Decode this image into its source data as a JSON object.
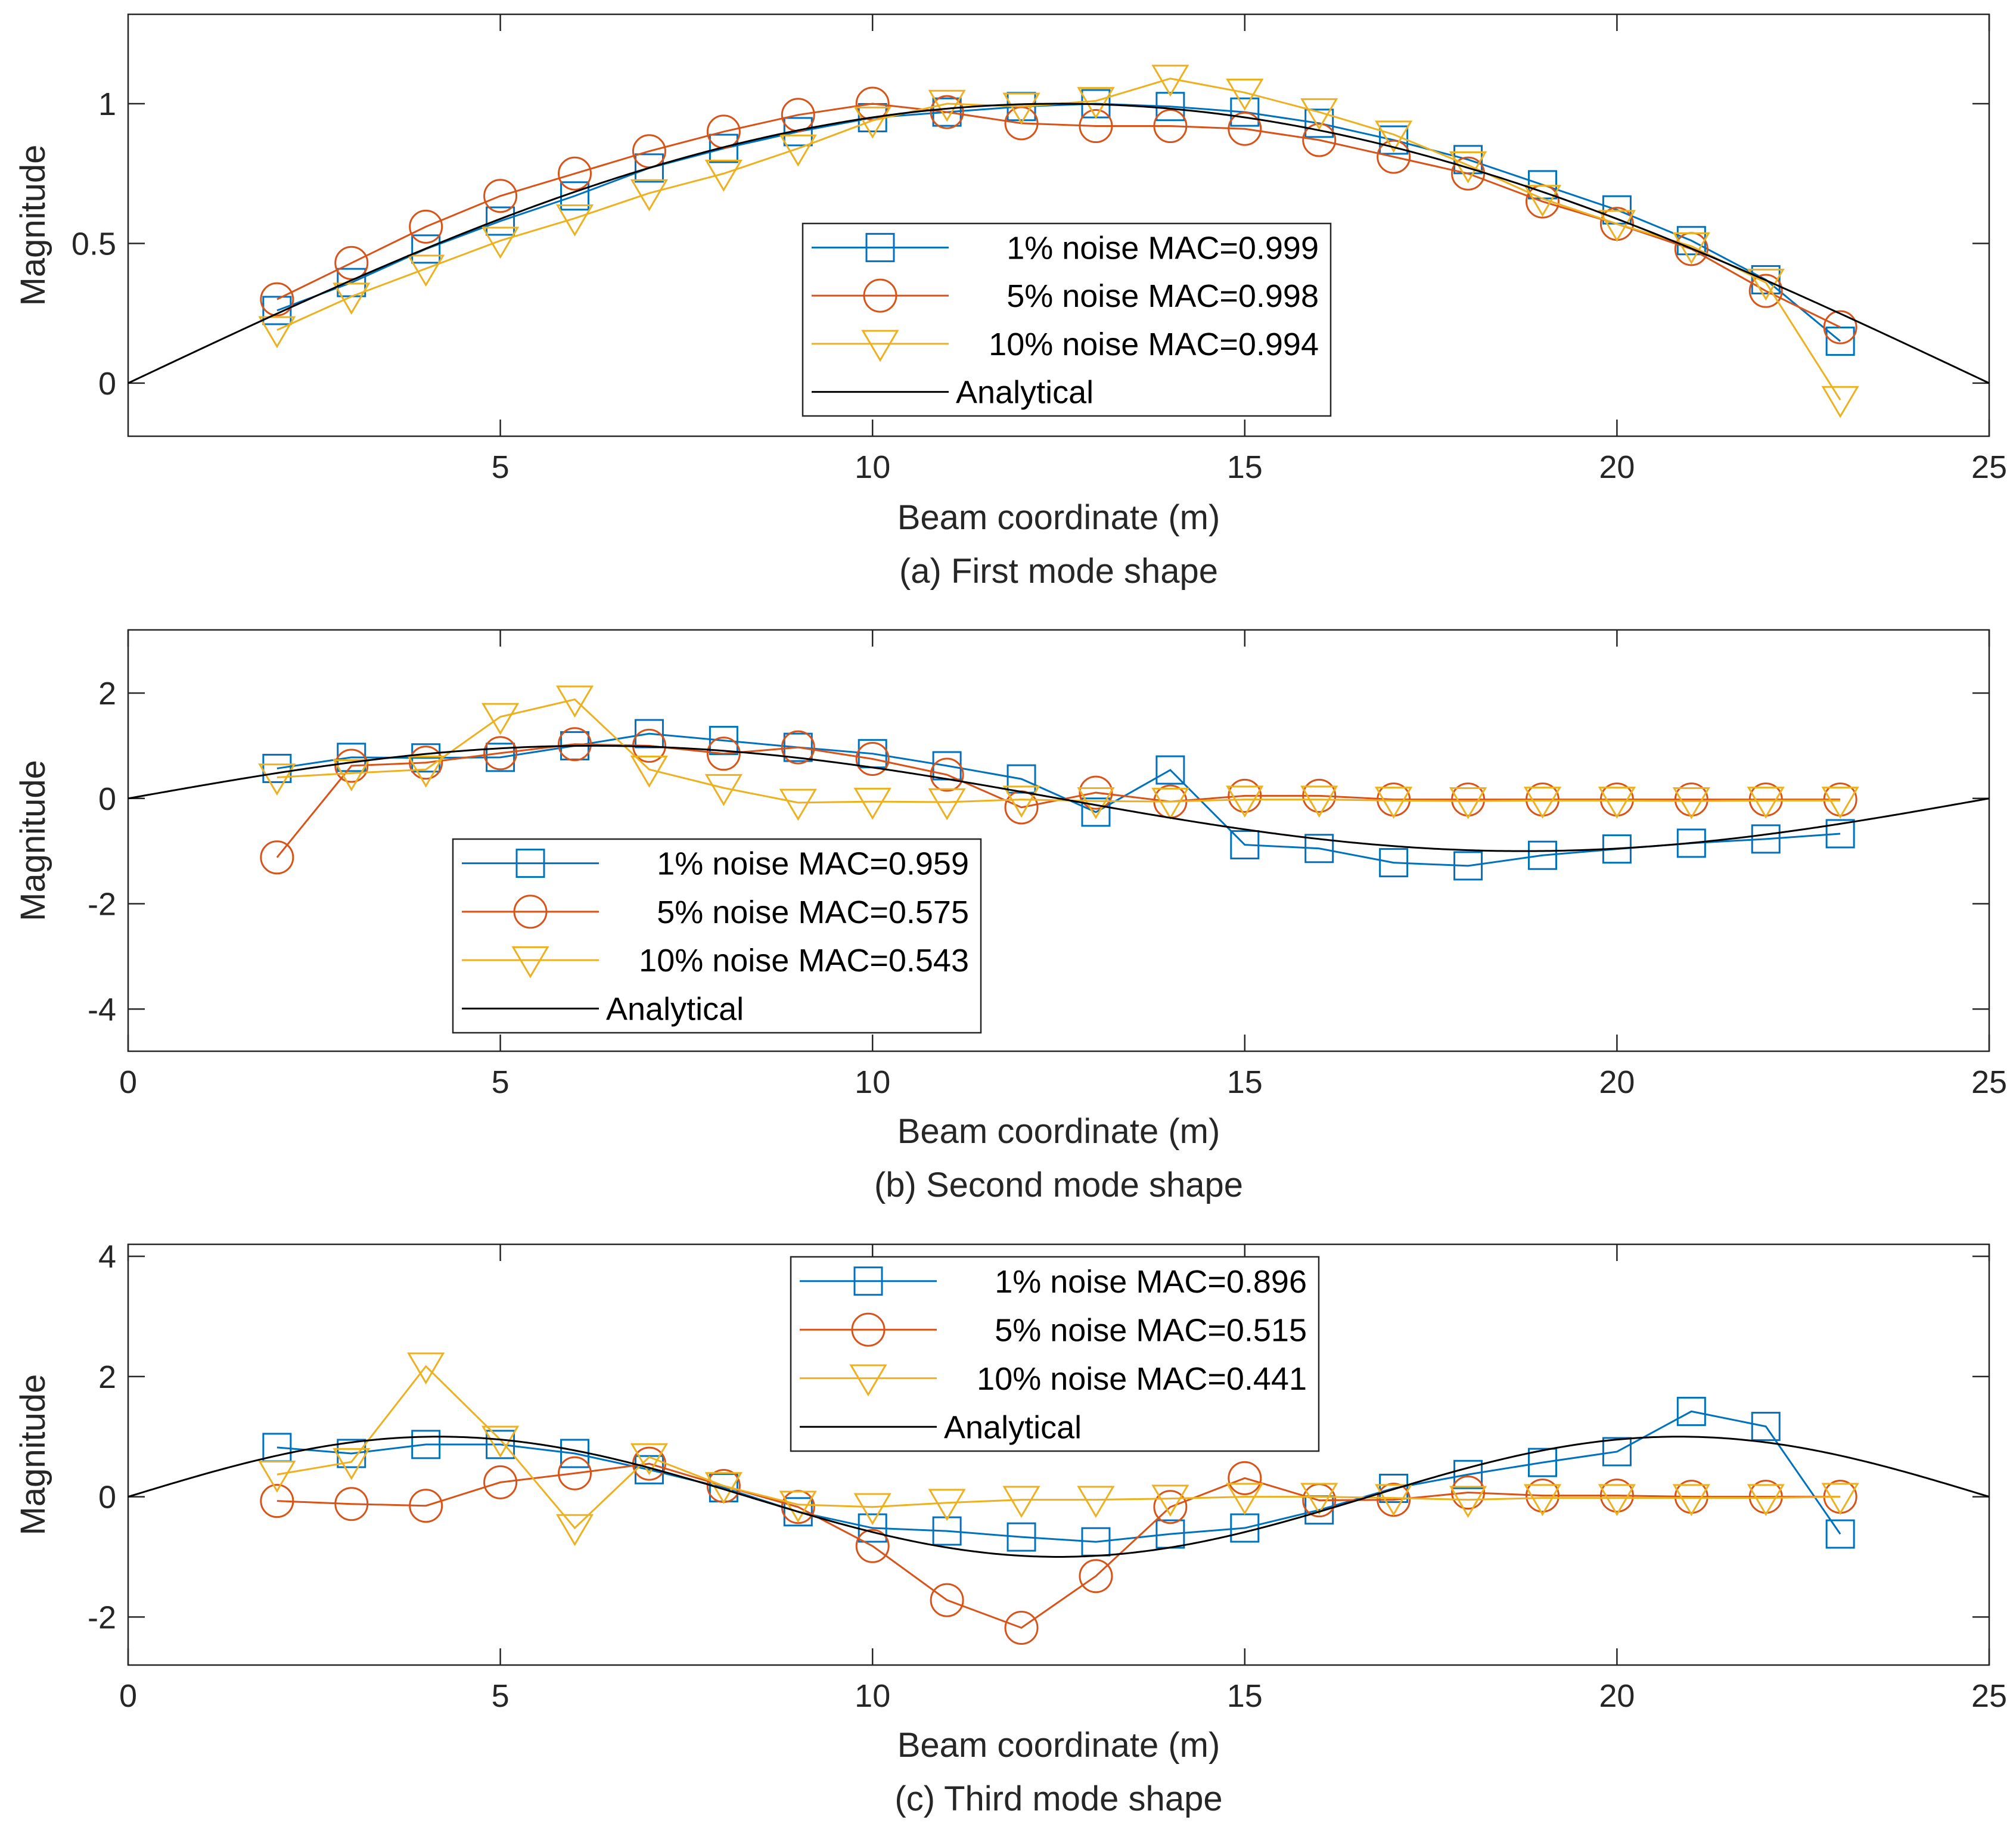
{
  "chart_data": [
    {
      "type": "line",
      "panel": "a",
      "caption": "(a) First mode shape",
      "xlabel": "Beam coordinate (m)",
      "ylabel": "Magnitude",
      "xlim": [
        0,
        25
      ],
      "ylim": [
        -0.19,
        1.32
      ],
      "xticks": [
        5,
        10,
        15,
        20,
        25
      ],
      "xtick_labels": [
        "5",
        "10",
        "15",
        "20",
        "25"
      ],
      "yticks": [
        0,
        0.5,
        1
      ],
      "ytick_labels": [
        "0",
        "0.5",
        "1"
      ],
      "legend_position": "center-right",
      "x": [
        2,
        3,
        4,
        5,
        6,
        7,
        8,
        9,
        10,
        11,
        12,
        13,
        14,
        15,
        16,
        17,
        18,
        19,
        20,
        21,
        22,
        23
      ],
      "series": [
        {
          "name": "1% noise MAC=0.999",
          "marker": "square",
          "color": "#0072BD",
          "values": [
            0.26,
            0.36,
            0.48,
            0.58,
            0.67,
            0.77,
            0.84,
            0.9,
            0.95,
            0.97,
            0.99,
            1.0,
            0.99,
            0.97,
            0.93,
            0.87,
            0.8,
            0.71,
            0.62,
            0.51,
            0.37,
            0.15
          ]
        },
        {
          "name": "5% noise MAC=0.998",
          "marker": "circle",
          "color": "#D95319",
          "values": [
            0.3,
            0.43,
            0.56,
            0.67,
            0.75,
            0.83,
            0.9,
            0.96,
            1.0,
            0.97,
            0.93,
            0.92,
            0.92,
            0.91,
            0.87,
            0.81,
            0.75,
            0.65,
            0.57,
            0.48,
            0.33,
            0.2
          ]
        },
        {
          "name": "10% noise MAC=0.994",
          "marker": "triangle-down",
          "color": "#EDB120",
          "values": [
            0.19,
            0.31,
            0.41,
            0.51,
            0.59,
            0.68,
            0.75,
            0.84,
            0.94,
            1.0,
            0.99,
            1.01,
            1.09,
            1.04,
            0.97,
            0.89,
            0.78,
            0.66,
            0.57,
            0.49,
            0.36,
            -0.06
          ]
        },
        {
          "name": "Analytical",
          "marker": "none",
          "color": "#000000",
          "function": "sin(pi*x/25)"
        }
      ]
    },
    {
      "type": "line",
      "panel": "b",
      "caption": "(b) Second mode shape",
      "xlabel": "Beam coordinate (m)",
      "ylabel": "Magnitude",
      "xlim": [
        0,
        25
      ],
      "ylim": [
        -4.8,
        3.2
      ],
      "xticks": [
        0,
        5,
        10,
        15,
        20,
        25
      ],
      "xtick_labels": [
        "0",
        "5",
        "10",
        "15",
        "20",
        "25"
      ],
      "yticks": [
        -4,
        -2,
        0,
        2
      ],
      "ytick_labels": [
        "-4",
        "-2",
        "0",
        "2"
      ],
      "legend_position": "lower-left",
      "x": [
        2,
        3,
        4,
        5,
        6,
        7,
        8,
        9,
        10,
        11,
        12,
        13,
        14,
        15,
        16,
        17,
        18,
        19,
        20,
        21,
        22,
        23
      ],
      "series": [
        {
          "name": "1% noise MAC=0.959",
          "marker": "square",
          "color": "#0072BD",
          "values": [
            0.57,
            0.78,
            0.77,
            0.78,
            1.0,
            1.23,
            1.1,
            0.97,
            0.85,
            0.62,
            0.37,
            -0.26,
            0.54,
            -0.88,
            -0.95,
            -1.22,
            -1.28,
            -1.08,
            -0.96,
            -0.85,
            -0.77,
            -0.67
          ]
        },
        {
          "name": "5% noise MAC=0.575",
          "marker": "circle",
          "color": "#D95319",
          "values": [
            -1.12,
            0.62,
            0.68,
            0.86,
            1.03,
            1.0,
            0.85,
            0.97,
            0.75,
            0.45,
            -0.17,
            0.11,
            -0.06,
            0.05,
            0.05,
            -0.02,
            -0.02,
            -0.02,
            -0.02,
            -0.02,
            -0.02,
            -0.02
          ]
        },
        {
          "name": "10% noise MAC=0.543",
          "marker": "triangle-down",
          "color": "#EDB120",
          "values": [
            0.4,
            0.48,
            0.55,
            1.55,
            1.88,
            0.55,
            0.2,
            -0.08,
            -0.06,
            -0.07,
            -0.02,
            -0.05,
            -0.06,
            -0.02,
            -0.02,
            -0.04,
            -0.05,
            -0.04,
            -0.04,
            -0.05,
            -0.04,
            -0.04
          ]
        },
        {
          "name": "Analytical",
          "marker": "none",
          "color": "#000000",
          "function": "sin(2*pi*x/25)"
        }
      ]
    },
    {
      "type": "line",
      "panel": "c",
      "caption": "(c) Third mode shape",
      "xlabel": "Beam coordinate (m)",
      "ylabel": "Magnitude",
      "xlim": [
        0,
        25
      ],
      "ylim": [
        -2.8,
        4.2
      ],
      "xticks": [
        0,
        5,
        10,
        15,
        20,
        25
      ],
      "xtick_labels": [
        "0",
        "5",
        "10",
        "15",
        "20",
        "25"
      ],
      "yticks": [
        -2,
        0,
        2,
        4
      ],
      "ytick_labels": [
        "-2",
        "0",
        "2",
        "4"
      ],
      "legend_position": "top-center",
      "x": [
        2,
        3,
        4,
        5,
        6,
        7,
        8,
        9,
        10,
        11,
        12,
        13,
        14,
        15,
        16,
        17,
        18,
        19,
        20,
        21,
        22,
        23
      ],
      "series": [
        {
          "name": "1% noise MAC=0.896",
          "marker": "square",
          "color": "#0072BD",
          "values": [
            0.82,
            0.72,
            0.87,
            0.87,
            0.72,
            0.45,
            0.15,
            -0.25,
            -0.52,
            -0.57,
            -0.67,
            -0.75,
            -0.62,
            -0.52,
            -0.22,
            0.14,
            0.37,
            0.57,
            0.75,
            1.42,
            1.17,
            -0.62
          ]
        },
        {
          "name": "5% noise MAC=0.515",
          "marker": "circle",
          "color": "#D95319",
          "values": [
            -0.07,
            -0.12,
            -0.15,
            0.24,
            0.39,
            0.55,
            0.18,
            -0.17,
            -0.82,
            -1.72,
            -2.18,
            -1.32,
            -0.17,
            0.31,
            -0.06,
            -0.05,
            0.07,
            0.02,
            0.02,
            0.0,
            0.0,
            0.0
          ]
        },
        {
          "name": "10% noise MAC=0.441",
          "marker": "triangle-down",
          "color": "#EDB120",
          "values": [
            0.37,
            0.58,
            2.17,
            0.95,
            -0.52,
            0.66,
            0.18,
            -0.13,
            -0.17,
            -0.1,
            -0.05,
            -0.05,
            -0.03,
            0.0,
            0.0,
            -0.02,
            -0.05,
            -0.02,
            -0.02,
            -0.02,
            -0.02,
            0.0
          ]
        },
        {
          "name": "Analytical",
          "marker": "none",
          "color": "#000000",
          "function": "sin(3*pi*x/25)"
        }
      ]
    }
  ]
}
